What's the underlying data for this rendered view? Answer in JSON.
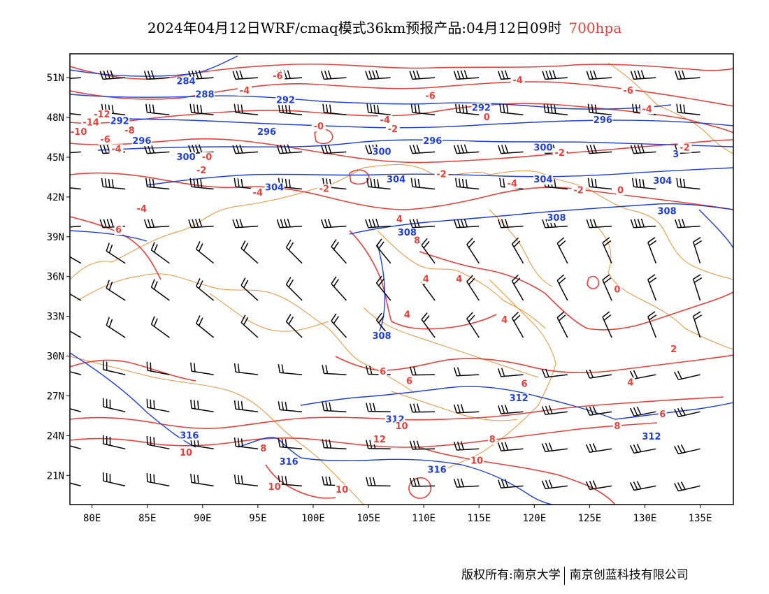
{
  "title": {
    "text": "2024年04月12日WRF/cmaq模式36km预报产品:04月12日09时",
    "level": "700hpa"
  },
  "axes": {
    "lat_labels": [
      "51N",
      "48N",
      "45N",
      "42N",
      "39N",
      "36N",
      "33N",
      "30N",
      "27N",
      "24N",
      "21N"
    ],
    "lat_values": [
      51,
      48,
      45,
      42,
      39,
      36,
      33,
      30,
      27,
      24,
      21
    ],
    "lon_labels": [
      "80E",
      "85E",
      "90E",
      "95E",
      "100E",
      "105E",
      "110E",
      "115E",
      "120E",
      "125E",
      "130E",
      "135E"
    ],
    "lon_values": [
      80,
      85,
      90,
      95,
      100,
      105,
      110,
      115,
      120,
      125,
      130,
      135
    ],
    "lat_range": [
      18.8,
      52.8
    ],
    "lon_range": [
      78,
      138
    ]
  },
  "colors": {
    "geopotential_contour": "#1f3fd8",
    "temperature_contour": "#e8403a",
    "boundaries": "#e8923a",
    "wind_barbs": "#000000",
    "title_level": "#e8403a"
  },
  "geopotential_labels": [
    {
      "text": "284",
      "lon": 88.5,
      "lat": 50.6
    },
    {
      "text": "288",
      "lon": 90.2,
      "lat": 49.6
    },
    {
      "text": "292",
      "lon": 82.5,
      "lat": 47.6
    },
    {
      "text": "296",
      "lon": 84.5,
      "lat": 46.1
    },
    {
      "text": "296",
      "lon": 95.8,
      "lat": 46.8
    },
    {
      "text": "292",
      "lon": 97.5,
      "lat": 49.2
    },
    {
      "text": "300",
      "lon": 88.5,
      "lat": 44.9
    },
    {
      "text": "300",
      "lon": 106.2,
      "lat": 45.3
    },
    {
      "text": "292",
      "lon": 115.2,
      "lat": 48.6
    },
    {
      "text": "296",
      "lon": 110.8,
      "lat": 46.1
    },
    {
      "text": "296",
      "lon": 126.2,
      "lat": 47.7
    },
    {
      "text": "300",
      "lon": 120.8,
      "lat": 45.6
    },
    {
      "text": "304",
      "lon": 96.5,
      "lat": 42.6
    },
    {
      "text": "304",
      "lon": 107.5,
      "lat": 43.2
    },
    {
      "text": "304",
      "lon": 120.8,
      "lat": 43.2
    },
    {
      "text": "304",
      "lon": 131.6,
      "lat": 43.1
    },
    {
      "text": "308",
      "lon": 108.5,
      "lat": 39.2
    },
    {
      "text": "308",
      "lon": 122.0,
      "lat": 40.3
    },
    {
      "text": "308",
      "lon": 132.0,
      "lat": 40.8
    },
    {
      "text": "308",
      "lon": 106.2,
      "lat": 31.4
    },
    {
      "text": "312",
      "lon": 118.6,
      "lat": 26.7
    },
    {
      "text": "312",
      "lon": 107.4,
      "lat": 25.1
    },
    {
      "text": "312",
      "lon": 130.6,
      "lat": 23.8
    },
    {
      "text": "316",
      "lon": 88.8,
      "lat": 23.9
    },
    {
      "text": "316",
      "lon": 97.8,
      "lat": 21.9
    },
    {
      "text": "316",
      "lon": 111.2,
      "lat": 21.3
    },
    {
      "text": "3",
      "lon": 132.8,
      "lat": 45.1
    }
  ],
  "temperature_labels": [
    {
      "text": "-6",
      "lon": 96.8,
      "lat": 51.0
    },
    {
      "text": "-4",
      "lon": 93.8,
      "lat": 49.9
    },
    {
      "text": "-6",
      "lon": 110.6,
      "lat": 49.5
    },
    {
      "text": "-4",
      "lon": 118.5,
      "lat": 50.7
    },
    {
      "text": "-12",
      "lon": 80.9,
      "lat": 48.1
    },
    {
      "text": "-14",
      "lon": 79.9,
      "lat": 47.5
    },
    {
      "text": "-10",
      "lon": 78.8,
      "lat": 46.8
    },
    {
      "text": "-8",
      "lon": 83.4,
      "lat": 46.9
    },
    {
      "text": "-6",
      "lon": 81.2,
      "lat": 46.2
    },
    {
      "text": "-4",
      "lon": 82.2,
      "lat": 45.5
    },
    {
      "text": "-0",
      "lon": 90.4,
      "lat": 44.9
    },
    {
      "text": "-2",
      "lon": 89.9,
      "lat": 43.9
    },
    {
      "text": "-0",
      "lon": 100.5,
      "lat": 47.2
    },
    {
      "text": "-4",
      "lon": 106.5,
      "lat": 47.7
    },
    {
      "text": "-2",
      "lon": 107.2,
      "lat": 47.0
    },
    {
      "text": "0",
      "lon": 115.7,
      "lat": 47.9
    },
    {
      "text": "-4",
      "lon": 130.2,
      "lat": 48.5
    },
    {
      "text": "-6",
      "lon": 128.5,
      "lat": 49.9
    },
    {
      "text": "-2",
      "lon": 122.3,
      "lat": 45.2
    },
    {
      "text": "-2",
      "lon": 133.6,
      "lat": 45.6
    },
    {
      "text": "-2",
      "lon": 111.6,
      "lat": 43.6
    },
    {
      "text": "-2",
      "lon": 101.0,
      "lat": 42.5
    },
    {
      "text": "-2",
      "lon": 124.0,
      "lat": 42.4
    },
    {
      "text": "-4",
      "lon": 95.0,
      "lat": 42.2
    },
    {
      "text": "-4",
      "lon": 118.0,
      "lat": 42.9
    },
    {
      "text": "0",
      "lon": 127.8,
      "lat": 42.4
    },
    {
      "text": "-4",
      "lon": 84.5,
      "lat": 41.0
    },
    {
      "text": "4",
      "lon": 107.8,
      "lat": 40.2
    },
    {
      "text": "6",
      "lon": 82.4,
      "lat": 39.4
    },
    {
      "text": "8",
      "lon": 109.4,
      "lat": 38.6
    },
    {
      "text": "4",
      "lon": 110.2,
      "lat": 35.7
    },
    {
      "text": "4",
      "lon": 113.2,
      "lat": 35.7
    },
    {
      "text": "0",
      "lon": 127.5,
      "lat": 34.9
    },
    {
      "text": "4",
      "lon": 108.5,
      "lat": 33.0
    },
    {
      "text": "4",
      "lon": 117.3,
      "lat": 32.6
    },
    {
      "text": "2",
      "lon": 132.6,
      "lat": 30.4
    },
    {
      "text": "6",
      "lon": 108.7,
      "lat": 28.0
    },
    {
      "text": "6",
      "lon": 106.3,
      "lat": 28.7
    },
    {
      "text": "6",
      "lon": 119.1,
      "lat": 27.8
    },
    {
      "text": "4",
      "lon": 128.7,
      "lat": 27.9
    },
    {
      "text": "6",
      "lon": 131.6,
      "lat": 25.5
    },
    {
      "text": "8",
      "lon": 127.5,
      "lat": 24.6
    },
    {
      "text": "10",
      "lon": 108.0,
      "lat": 24.6
    },
    {
      "text": "12",
      "lon": 106.0,
      "lat": 23.6
    },
    {
      "text": "8",
      "lon": 116.2,
      "lat": 23.6
    },
    {
      "text": "8",
      "lon": 95.5,
      "lat": 22.9
    },
    {
      "text": "10",
      "lon": 88.5,
      "lat": 22.6
    },
    {
      "text": "10",
      "lon": 114.8,
      "lat": 22.0
    },
    {
      "text": "10",
      "lon": 96.5,
      "lat": 20.0
    },
    {
      "text": "10",
      "lon": 102.6,
      "lat": 19.8
    }
  ],
  "footer": {
    "left": "版权所有:南京大学",
    "right": "南京创蓝科技有限公司"
  }
}
